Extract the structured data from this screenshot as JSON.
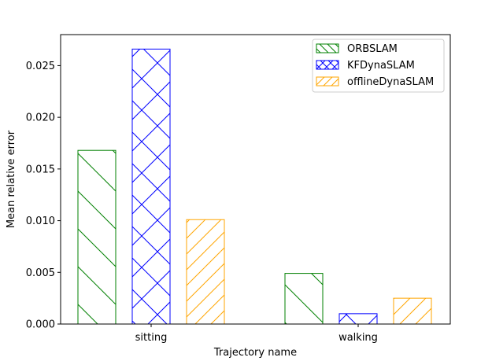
{
  "chart_data": {
    "type": "bar",
    "title": "",
    "xlabel": "Trajectory name",
    "ylabel": "Mean relative error",
    "categories": [
      "sitting",
      "walking"
    ],
    "series": [
      {
        "name": "ORBSLAM",
        "values": [
          0.0168,
          0.0049
        ],
        "color": "#008000",
        "hatch": "backslash"
      },
      {
        "name": "KFDynaSLAM",
        "values": [
          0.0266,
          0.001
        ],
        "color": "#0000ff",
        "hatch": "cross"
      },
      {
        "name": "offlineDynaSLAM",
        "values": [
          0.0101,
          0.0025
        ],
        "color": "#ffa500",
        "hatch": "slash"
      }
    ],
    "ylim": [
      0,
      0.028
    ],
    "yticks": [
      "0.000",
      "0.005",
      "0.010",
      "0.015",
      "0.020",
      "0.025"
    ],
    "grid": false,
    "legend_position": "top-right"
  }
}
